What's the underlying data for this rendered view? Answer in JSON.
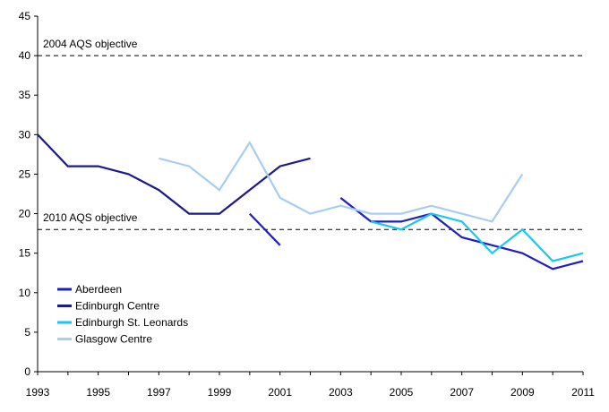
{
  "chart_data": {
    "type": "line",
    "title": "",
    "xlabel": "",
    "ylabel": "",
    "xlim": [
      1993,
      2011
    ],
    "ylim": [
      0,
      45
    ],
    "y_ticks": [
      0,
      5,
      10,
      15,
      20,
      25,
      30,
      35,
      40,
      45
    ],
    "x_tick_labels": [
      "1993",
      "1995",
      "1997",
      "1999",
      "2001",
      "2003",
      "2005",
      "2007",
      "2009",
      "2011"
    ],
    "grid": false,
    "legend_position": "bottom-left",
    "reference_lines": [
      {
        "label": "2004 AQS objective",
        "y": 40
      },
      {
        "label": "2010 AQS objective",
        "y": 18
      }
    ],
    "series": [
      {
        "name": "Aberdeen",
        "color": "#1f1fbf",
        "segments": [
          [
            [
              2000,
              20
            ],
            [
              2001,
              16
            ]
          ],
          [
            [
              2003,
              22
            ],
            [
              2004,
              19
            ],
            [
              2005,
              19
            ],
            [
              2006,
              20
            ],
            [
              2007,
              17
            ],
            [
              2008,
              16
            ],
            [
              2009,
              15
            ],
            [
              2010,
              13
            ],
            [
              2011,
              14
            ]
          ]
        ]
      },
      {
        "name": "Edinburgh Centre",
        "color": "#1a1a8c",
        "segments": [
          [
            [
              1993,
              30
            ],
            [
              1994,
              26
            ],
            [
              1995,
              26
            ],
            [
              1996,
              25
            ],
            [
              1997,
              23
            ],
            [
              1998,
              20
            ],
            [
              1999,
              20
            ],
            [
              2000,
              23
            ],
            [
              2001,
              26
            ],
            [
              2002,
              27
            ]
          ]
        ]
      },
      {
        "name": "Edinburgh St. Leonards",
        "color": "#19c8f0",
        "segments": [
          [
            [
              2004,
              19
            ],
            [
              2005,
              18
            ],
            [
              2006,
              20
            ],
            [
              2007,
              19
            ],
            [
              2008,
              15
            ],
            [
              2009,
              18
            ],
            [
              2010,
              14
            ],
            [
              2011,
              15
            ]
          ]
        ]
      },
      {
        "name": "Glasgow Centre",
        "color": "#a6cdf2",
        "segments": [
          [
            [
              1997,
              27
            ],
            [
              1998,
              26
            ],
            [
              1999,
              23
            ],
            [
              2000,
              29
            ],
            [
              2001,
              22
            ],
            [
              2002,
              20
            ],
            [
              2003,
              21
            ],
            [
              2004,
              20
            ],
            [
              2005,
              20
            ],
            [
              2006,
              21
            ],
            [
              2007,
              20
            ],
            [
              2008,
              19
            ],
            [
              2009,
              25
            ]
          ]
        ]
      }
    ]
  }
}
